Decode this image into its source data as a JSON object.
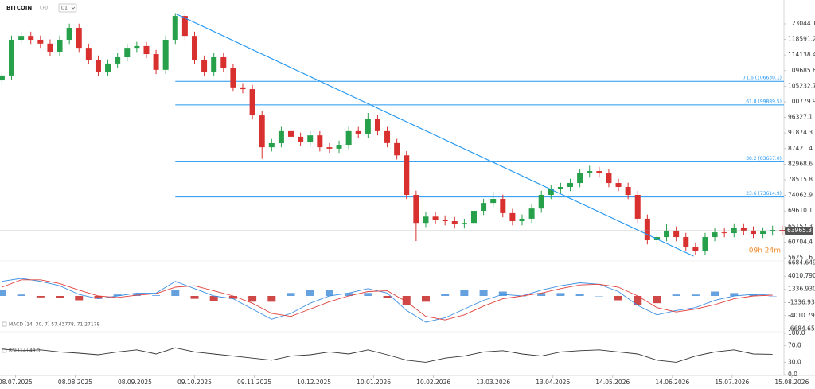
{
  "header": {
    "symbol": "BITCOIN",
    "instrument": "CFD",
    "timeframe": "D1"
  },
  "chart_data": [
    {
      "type": "candlestick",
      "xlim": [
        "2025-06-30",
        "2026-08-20"
      ],
      "xticks": [
        {
          "value": "2025-07-08",
          "label": "08.07.2025"
        },
        {
          "value": "2025-08-08",
          "label": "08.08.2025"
        },
        {
          "value": "2025-09-08",
          "label": "08.09.2025"
        },
        {
          "value": "2025-10-09",
          "label": "09.10.2025"
        },
        {
          "value": "2025-11-09",
          "label": "09.11.2025"
        },
        {
          "value": "2025-12-10",
          "label": "10.12.2025"
        },
        {
          "value": "2026-01-10",
          "label": "10.01.2026"
        },
        {
          "value": "2026-02-10",
          "label": "10.02.2026"
        },
        {
          "value": "2026-03-13",
          "label": "13.03.2026"
        },
        {
          "value": "2026-04-13",
          "label": "13.04.2026"
        },
        {
          "value": "2026-05-14",
          "label": "14.05.2026"
        },
        {
          "value": "2026-06-14",
          "label": "14.06.2026"
        },
        {
          "value": "2026-07-15",
          "label": "15.07.2026"
        },
        {
          "value": "2026-08-15",
          "label": "15.08.2026"
        }
      ],
      "ylim": [
        55570,
        126450
      ],
      "yticks": [
        123044.1,
        118591.2,
        114138.4,
        109685.6,
        105232.7,
        100779.9,
        96327.1,
        91874.3,
        87421.4,
        82968.6,
        78515.8,
        74062.9,
        69610.1,
        65157.3,
        60704.4,
        56251.6
      ],
      "up_color": "#26a04a",
      "down_color": "#d8302f",
      "x": [
        "2025-07-01",
        "2025-07-06",
        "2025-07-11",
        "2025-07-16",
        "2025-07-21",
        "2025-07-26",
        "2025-07-31",
        "2025-08-05",
        "2025-08-10",
        "2025-08-15",
        "2025-08-20",
        "2025-08-25",
        "2025-08-30",
        "2025-09-04",
        "2025-09-09",
        "2025-09-14",
        "2025-09-19",
        "2025-09-24",
        "2025-09-29",
        "2025-10-04",
        "2025-10-09",
        "2025-10-14",
        "2025-10-19",
        "2025-10-24",
        "2025-10-29",
        "2025-11-03",
        "2025-11-08",
        "2025-11-13",
        "2025-11-18",
        "2025-11-23",
        "2025-11-28",
        "2025-12-03",
        "2025-12-08",
        "2025-12-13",
        "2025-12-18",
        "2025-12-23",
        "2025-12-28",
        "2026-01-02",
        "2026-01-07",
        "2026-01-12",
        "2026-01-17",
        "2026-01-22",
        "2026-01-27",
        "2026-02-01",
        "2026-02-06",
        "2026-02-11",
        "2026-02-16",
        "2026-02-21",
        "2026-02-26",
        "2026-03-03",
        "2026-03-08",
        "2026-03-13",
        "2026-03-18",
        "2026-03-23",
        "2026-03-28",
        "2026-04-02",
        "2026-04-07",
        "2026-04-12",
        "2026-04-17",
        "2026-04-22",
        "2026-04-27",
        "2026-05-02",
        "2026-05-07",
        "2026-05-12",
        "2026-05-17",
        "2026-05-22",
        "2026-05-27",
        "2026-06-01",
        "2026-06-06",
        "2026-06-11",
        "2026-06-16",
        "2026-06-21",
        "2026-06-26",
        "2026-07-01",
        "2026-07-06",
        "2026-07-11",
        "2026-07-16",
        "2026-07-21",
        "2026-07-26",
        "2026-07-31",
        "2026-08-05",
        "2026-08-10"
      ],
      "open": [
        106900,
        108300,
        118500,
        119600,
        118500,
        117400,
        115100,
        118500,
        121900,
        116200,
        112800,
        109400,
        111700,
        113500,
        116200,
        116700,
        114400,
        109900,
        118500,
        125300,
        119600,
        112800,
        109400,
        113500,
        110500,
        104900,
        104400,
        96900,
        87800,
        88970,
        92400,
        90800,
        89400,
        91200,
        87800,
        87400,
        88500,
        92400,
        91700,
        95800,
        92400,
        89000,
        85500,
        74200,
        66200,
        68000,
        67150,
        66700,
        65800,
        66200,
        69650,
        71900,
        73060,
        69000,
        66700,
        67400,
        70300,
        74200,
        75800,
        76470,
        77600,
        80330,
        81000,
        80330,
        77600,
        76470,
        74200,
        67400,
        61250,
        62150,
        64000,
        62150,
        59430,
        58300,
        62150,
        63500,
        63290,
        64880,
        64000,
        63060,
        63740,
        64200
      ],
      "high": [
        109500,
        119700,
        120800,
        120800,
        119700,
        118600,
        119700,
        123100,
        123100,
        117400,
        114000,
        112900,
        114700,
        117400,
        117900,
        117900,
        115600,
        119700,
        126100,
        126000,
        120800,
        114000,
        114700,
        114700,
        111700,
        106100,
        105600,
        98100,
        90170,
        93600,
        93600,
        92000,
        92400,
        92400,
        89000,
        89700,
        93600,
        93600,
        97600,
        97000,
        93600,
        90200,
        86700,
        75400,
        69200,
        69200,
        68350,
        67900,
        67400,
        70850,
        73100,
        75200,
        74260,
        70200,
        68600,
        71500,
        75400,
        77000,
        77670,
        78800,
        81530,
        82500,
        82200,
        81530,
        78800,
        77670,
        75400,
        68600,
        63350,
        66000,
        65200,
        63350,
        60630,
        63350,
        64700,
        64700,
        66080,
        66080,
        65200,
        64940,
        65400,
        65400
      ],
      "low": [
        105700,
        107100,
        117300,
        117300,
        116200,
        113900,
        113900,
        117300,
        115000,
        111600,
        108200,
        108200,
        110500,
        112300,
        115000,
        113200,
        108700,
        108700,
        117300,
        118400,
        111600,
        108200,
        108200,
        109300,
        103700,
        103200,
        95700,
        84500,
        86600,
        87770,
        89600,
        88200,
        88200,
        86600,
        86200,
        86200,
        87300,
        90500,
        90500,
        91200,
        87800,
        84300,
        73000,
        61000,
        65000,
        65950,
        65500,
        64600,
        64600,
        65000,
        68450,
        70700,
        67800,
        65500,
        65500,
        66200,
        69100,
        73000,
        74600,
        75270,
        76400,
        79130,
        79130,
        76400,
        75270,
        73000,
        66200,
        60050,
        60050,
        60950,
        60950,
        58230,
        57100,
        57100,
        60950,
        62090,
        62090,
        62800,
        61860,
        61860,
        62540,
        62765
      ],
      "close": [
        108300,
        118500,
        119600,
        118500,
        117400,
        115100,
        118500,
        121900,
        116200,
        112800,
        109400,
        111700,
        113500,
        116200,
        116700,
        114400,
        109900,
        118500,
        125300,
        119600,
        112800,
        109400,
        113500,
        110500,
        104900,
        104400,
        96900,
        87800,
        88970,
        92400,
        90800,
        89400,
        91200,
        87800,
        87400,
        88500,
        92400,
        91700,
        95800,
        92400,
        89000,
        85500,
        74200,
        66200,
        68000,
        67150,
        66700,
        65800,
        66200,
        69650,
        71900,
        73060,
        69000,
        66700,
        67400,
        70300,
        74200,
        75800,
        76470,
        77600,
        80330,
        81000,
        80330,
        77600,
        76470,
        74200,
        67400,
        61250,
        62150,
        64000,
        62150,
        59430,
        58300,
        62150,
        63500,
        63290,
        64880,
        64000,
        63060,
        63740,
        64200,
        63965
      ],
      "last_price": 63965.3,
      "last_color": "#555",
      "countdown": "09h 24m",
      "drawing_color": "#2196f3",
      "fib_from": "2025-09-29",
      "fib_levels": [
        {
          "value": 106630.1,
          "label": "71.6 (106630.1)"
        },
        {
          "value": 99889.5,
          "label": "61.8 (99889.5)"
        },
        {
          "value": 83657.0,
          "label": "38.2 (83657.0)"
        },
        {
          "value": 73614.9,
          "label": "23.6 (73614.9)"
        }
      ],
      "trendline": {
        "x": [
          "2025-09-29",
          "2026-06-25"
        ],
        "values": [
          126000,
          56700
        ]
      }
    },
    {
      "type": "macd",
      "legend": "MACD [14, 30, 7] 57.43778, 71.27178",
      "ylim": [
        -7130,
        7130
      ],
      "yticks": [
        6684.649,
        {
          "value": 4010.79,
          "label": "4010.790"
        },
        {
          "value": 1336.93,
          "label": "1336.930"
        },
        -1336.93,
        -4010.79,
        -6684.65
      ],
      "x": [
        "2025-07-01",
        "2025-07-11",
        "2025-07-21",
        "2025-07-31",
        "2025-08-10",
        "2025-08-20",
        "2025-08-30",
        "2025-09-09",
        "2025-09-19",
        "2025-09-29",
        "2025-10-09",
        "2025-10-19",
        "2025-10-29",
        "2025-11-08",
        "2025-11-18",
        "2025-11-28",
        "2025-12-08",
        "2025-12-18",
        "2025-12-28",
        "2026-01-07",
        "2026-01-17",
        "2026-01-27",
        "2026-02-06",
        "2026-02-16",
        "2026-02-26",
        "2026-03-08",
        "2026-03-18",
        "2026-03-28",
        "2026-04-07",
        "2026-04-17",
        "2026-04-27",
        "2026-05-07",
        "2026-05-17",
        "2026-05-27",
        "2026-06-06",
        "2026-06-16",
        "2026-06-26",
        "2026-07-06",
        "2026-07-16",
        "2026-07-26",
        "2026-08-05"
      ],
      "series": [
        {
          "name": "MACD",
          "color": "#3d8fe3",
          "values": [
            2970,
            3560,
            2970,
            2080,
            300,
            -590,
            0,
            590,
            590,
            2970,
            1490,
            0,
            -590,
            -2670,
            -4750,
            -3560,
            -1490,
            0,
            590,
            1490,
            590,
            -2970,
            -5350,
            -4460,
            -2670,
            -890,
            300,
            0,
            1190,
            2080,
            2670,
            2380,
            890,
            -1930,
            -3860,
            -2970,
            -2380,
            -890,
            0,
            300,
            150
          ]
        },
        {
          "name": "Signal",
          "color": "#e0403c",
          "values": [
            1780,
            3270,
            3270,
            2520,
            1190,
            0,
            -300,
            150,
            450,
            1780,
            2080,
            1040,
            0,
            -1490,
            -3560,
            -4160,
            -2670,
            -1190,
            0,
            890,
            1040,
            -1190,
            -4160,
            -4900,
            -3860,
            -2080,
            -590,
            0,
            590,
            1490,
            2230,
            2380,
            1780,
            0,
            -2380,
            -3270,
            -2670,
            -1780,
            -590,
            0,
            150
          ]
        }
      ],
      "histogram": {
        "up_color": "#4a90d9",
        "down_color": "#c62828",
        "values": [
          1190,
          290,
          -300,
          -440,
          -890,
          -590,
          300,
          440,
          140,
          1190,
          -590,
          -1040,
          -590,
          -1180,
          -1190,
          600,
          1180,
          1190,
          590,
          600,
          -450,
          -1780,
          -1190,
          440,
          1190,
          1190,
          890,
          0,
          600,
          590,
          440,
          0,
          -890,
          -1930,
          -1480,
          300,
          290,
          890,
          590,
          300,
          0
        ]
      }
    },
    {
      "type": "line",
      "legend": "RSI [14] 49.3",
      "ylim": [
        0,
        100
      ],
      "yticks": [
        {
          "value": 100,
          "label": "100.0"
        },
        {
          "value": 70,
          "label": "70.0"
        },
        {
          "value": 30,
          "label": "30.0"
        },
        {
          "value": 0,
          "label": "0.0"
        }
      ],
      "x": [
        "2025-07-01",
        "2025-07-11",
        "2025-07-21",
        "2025-07-31",
        "2025-08-10",
        "2025-08-20",
        "2025-08-30",
        "2025-09-09",
        "2025-09-19",
        "2025-09-29",
        "2025-10-09",
        "2025-10-19",
        "2025-10-29",
        "2025-11-08",
        "2025-11-18",
        "2025-11-28",
        "2025-12-08",
        "2025-12-18",
        "2025-12-28",
        "2026-01-07",
        "2026-01-17",
        "2026-01-27",
        "2026-02-06",
        "2026-02-16",
        "2026-02-26",
        "2026-03-08",
        "2026-03-18",
        "2026-03-28",
        "2026-04-07",
        "2026-04-17",
        "2026-04-27",
        "2026-05-07",
        "2026-05-17",
        "2026-05-27",
        "2026-06-06",
        "2026-06-16",
        "2026-06-26",
        "2026-07-06",
        "2026-07-16",
        "2026-07-26",
        "2026-08-05"
      ],
      "series": [
        {
          "name": "RSI",
          "color": "#333333",
          "values": [
            62,
            58,
            60,
            55,
            52,
            48,
            55,
            60,
            50,
            65,
            55,
            50,
            45,
            40,
            35,
            45,
            48,
            55,
            50,
            60,
            48,
            35,
            30,
            40,
            45,
            55,
            58,
            50,
            45,
            55,
            58,
            60,
            55,
            50,
            35,
            30,
            45,
            55,
            60,
            50,
            49.3
          ]
        }
      ]
    }
  ]
}
